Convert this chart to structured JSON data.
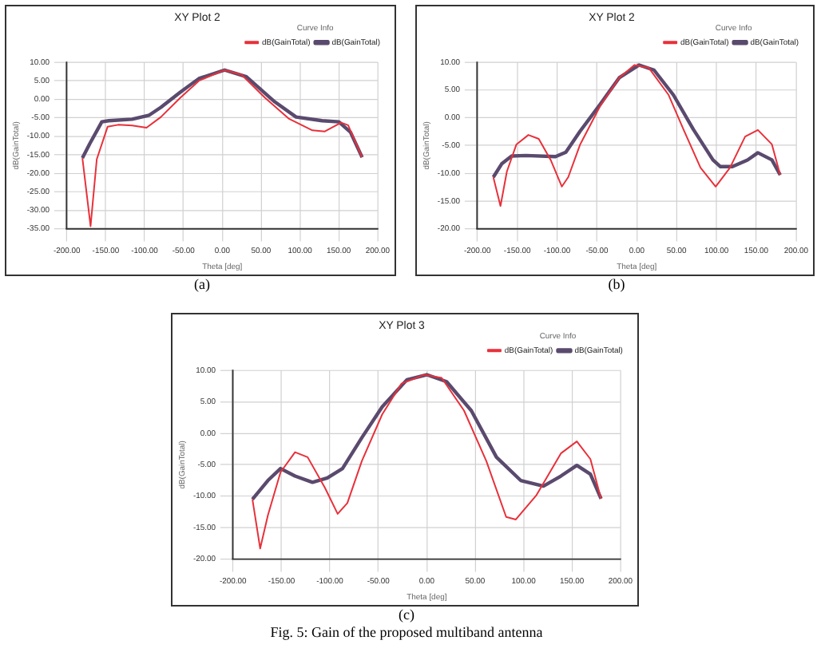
{
  "chart_data": [
    {
      "type": "line",
      "title": "XY Plot 2",
      "xlabel": "Theta [deg]",
      "ylabel": "dB(GainTotal)",
      "legend_title": "Curve Info",
      "legend": "top right",
      "grid": true,
      "marker": "none",
      "line_style": "solid",
      "annotations": [
        "(a)"
      ],
      "xlim": [
        -200,
        200
      ],
      "xticks": [
        {
          "value": -200,
          "label": "-200.00"
        },
        {
          "value": -150,
          "label": "-150.00"
        },
        {
          "value": -100,
          "label": "-100.00"
        },
        {
          "value": -50,
          "label": "-50.00"
        },
        {
          "value": 0,
          "label": "0.00"
        },
        {
          "value": 50,
          "label": "50.00"
        },
        {
          "value": 100,
          "label": "100.00"
        },
        {
          "value": 150,
          "label": "150.00"
        },
        {
          "value": 200,
          "label": "200.00"
        }
      ],
      "ylim": [
        -35,
        10
      ],
      "yticks": [
        {
          "value": -35,
          "label": "-35.00"
        },
        {
          "value": -30,
          "label": "-30.00"
        },
        {
          "value": -25,
          "label": "-25.00"
        },
        {
          "value": -20,
          "label": "-20.00"
        },
        {
          "value": -15,
          "label": "-15.00"
        },
        {
          "value": -10,
          "label": "-10.00"
        },
        {
          "value": -5,
          "label": "-5.00"
        },
        {
          "value": 0,
          "label": "0.00"
        },
        {
          "value": 5,
          "label": "5.00"
        },
        {
          "value": 10,
          "label": "10.00"
        }
      ],
      "series": [
        {
          "name": "dB(GainTotal)",
          "color": "#e8303a",
          "x": [
            -180,
            -169.5,
            -161.5,
            -147.5,
            -134,
            -116,
            -97.5,
            -79,
            -54,
            -30,
            3,
            25,
            55,
            86,
            116,
            132,
            153,
            162,
            180
          ],
          "values": [
            -15.9,
            -34.3,
            -16.2,
            -7.4,
            -6.9,
            -7.1,
            -7.7,
            -4.8,
            0.4,
            5,
            7.9,
            6.6,
            0.4,
            -5.3,
            -8.4,
            -8.7,
            -6.3,
            -7,
            -15.7
          ]
        },
        {
          "name": "dB(GainTotal)",
          "color": "#5a4a6e",
          "x": [
            -180,
            -170.5,
            -155,
            -146,
            -116,
            -94,
            -79,
            -54,
            -30,
            3,
            31,
            67.5,
            95,
            128.5,
            150,
            165,
            180
          ],
          "values": [
            -15.9,
            -12,
            -6.1,
            -5.8,
            -5.4,
            -4.3,
            -2.2,
            1.9,
            5.6,
            7.9,
            6.1,
            -0.7,
            -4.8,
            -5.8,
            -6.1,
            -8.9,
            -15.7
          ]
        }
      ]
    },
    {
      "type": "line",
      "title": "XY Plot 2",
      "xlabel": "Theta [deg]",
      "ylabel": "dB(GainTotal)",
      "legend_title": "Curve Info",
      "legend": "top right",
      "grid": true,
      "marker": "none",
      "line_style": "solid",
      "annotations": [
        "(b)"
      ],
      "xlim": [
        -200,
        200
      ],
      "xticks": [
        {
          "value": -200,
          "label": "-200.00"
        },
        {
          "value": -150,
          "label": "-150.00"
        },
        {
          "value": -100,
          "label": "-100.00"
        },
        {
          "value": -50,
          "label": "-50.00"
        },
        {
          "value": 0,
          "label": "0.00"
        },
        {
          "value": 50,
          "label": "50.00"
        },
        {
          "value": 100,
          "label": "100.00"
        },
        {
          "value": 150,
          "label": "150.00"
        },
        {
          "value": 200,
          "label": "200.00"
        }
      ],
      "ylim": [
        -20,
        10
      ],
      "yticks": [
        {
          "value": -20,
          "label": "-20.00"
        },
        {
          "value": -15,
          "label": "-15.00"
        },
        {
          "value": -10,
          "label": "-10.00"
        },
        {
          "value": -5,
          "label": "-5.00"
        },
        {
          "value": 0,
          "label": "0.00"
        },
        {
          "value": 5,
          "label": "5.00"
        },
        {
          "value": 10,
          "label": "10.00"
        }
      ],
      "series": [
        {
          "name": "dB(GainTotal)",
          "color": "#e8303a",
          "x": [
            -180,
            -171,
            -163,
            -151,
            -136,
            -123,
            -108,
            -94,
            -86,
            -71,
            -46,
            -22,
            -3,
            15,
            40,
            58.6,
            80,
            99,
            117,
            136,
            152,
            169.6,
            180
          ],
          "values": [
            -10.7,
            -15.9,
            -9.7,
            -4.8,
            -3.1,
            -3.8,
            -7.6,
            -12.4,
            -10.7,
            -4.8,
            2.1,
            7.2,
            9.5,
            9,
            4.1,
            -2.1,
            -9,
            -12.4,
            -9,
            -3.4,
            -2.2,
            -4.8,
            -10.3
          ]
        },
        {
          "name": "dB(GainTotal)",
          "color": "#5a4a6e",
          "x": [
            -180,
            -169.5,
            -157,
            -139,
            -102,
            -89,
            -71,
            -46,
            -22,
            3,
            21.6,
            46,
            71,
            95.6,
            105,
            120,
            139,
            152,
            169.6,
            180
          ],
          "values": [
            -10.7,
            -8.3,
            -6.9,
            -6.8,
            -7,
            -6.2,
            -2.4,
            2.4,
            7.2,
            9.5,
            8.6,
            4.1,
            -2.1,
            -7.6,
            -8.8,
            -8.8,
            -7.6,
            -6.3,
            -7.6,
            -10.3
          ]
        }
      ]
    },
    {
      "type": "line",
      "title": "XY Plot 3",
      "xlabel": "Theta [deg]",
      "ylabel": "dB(GainTotal)",
      "legend_title": "Curve Info",
      "legend": "top right",
      "grid": true,
      "marker": "none",
      "line_style": "solid",
      "annotations": [
        "(c)",
        "Fig. 5: Gain of the proposed multiband antenna"
      ],
      "xlim": [
        -200,
        200
      ],
      "xticks": [
        {
          "value": -200,
          "label": "-200.00"
        },
        {
          "value": -150,
          "label": "-150.00"
        },
        {
          "value": -100,
          "label": "-100.00"
        },
        {
          "value": -50,
          "label": "-50.00"
        },
        {
          "value": 0,
          "label": "0.00"
        },
        {
          "value": 50,
          "label": "50.00"
        },
        {
          "value": 100,
          "label": "100.00"
        },
        {
          "value": 150,
          "label": "150.00"
        },
        {
          "value": 200,
          "label": "200.00"
        }
      ],
      "ylim": [
        -20,
        10
      ],
      "yticks": [
        {
          "value": -20,
          "label": "-20.00"
        },
        {
          "value": -15,
          "label": "-15.00"
        },
        {
          "value": -10,
          "label": "-10.00"
        },
        {
          "value": -5,
          "label": "-5.00"
        },
        {
          "value": 0,
          "label": "0.00"
        },
        {
          "value": 5,
          "label": "5.00"
        },
        {
          "value": 10,
          "label": "10.00"
        }
      ],
      "series": [
        {
          "name": "dB(GainTotal)",
          "color": "#e8303a",
          "x": [
            -180,
            -172,
            -164,
            -151,
            -136,
            -123,
            -105,
            -92,
            -82,
            -67,
            -46,
            -26,
            -2.6,
            15.4,
            38.5,
            61.5,
            82,
            92,
            113,
            138.5,
            155,
            169,
            180
          ],
          "values": [
            -10.5,
            -18.3,
            -13,
            -6.2,
            -3,
            -3.8,
            -8.7,
            -12.8,
            -11.1,
            -4.4,
            3,
            7.9,
            9.3,
            8.8,
            3.6,
            -4.4,
            -13.3,
            -13.7,
            -9.9,
            -3.2,
            -1.3,
            -4.1,
            -10.4
          ]
        },
        {
          "name": "dB(GainTotal)",
          "color": "#5a4a6e",
          "x": [
            -180,
            -164,
            -151,
            -136,
            -118,
            -102.6,
            -87,
            -67,
            -46,
            -20.5,
            0,
            20.5,
            46,
            72,
            97,
            120.5,
            138.5,
            155,
            169,
            180
          ],
          "values": [
            -10.5,
            -7.5,
            -5.6,
            -6.8,
            -7.8,
            -7.1,
            -5.6,
            -0.7,
            4.2,
            8.5,
            9.3,
            8.2,
            3.6,
            -3.8,
            -7.5,
            -8.4,
            -6.8,
            -5.1,
            -6.5,
            -10.4
          ]
        }
      ]
    }
  ]
}
